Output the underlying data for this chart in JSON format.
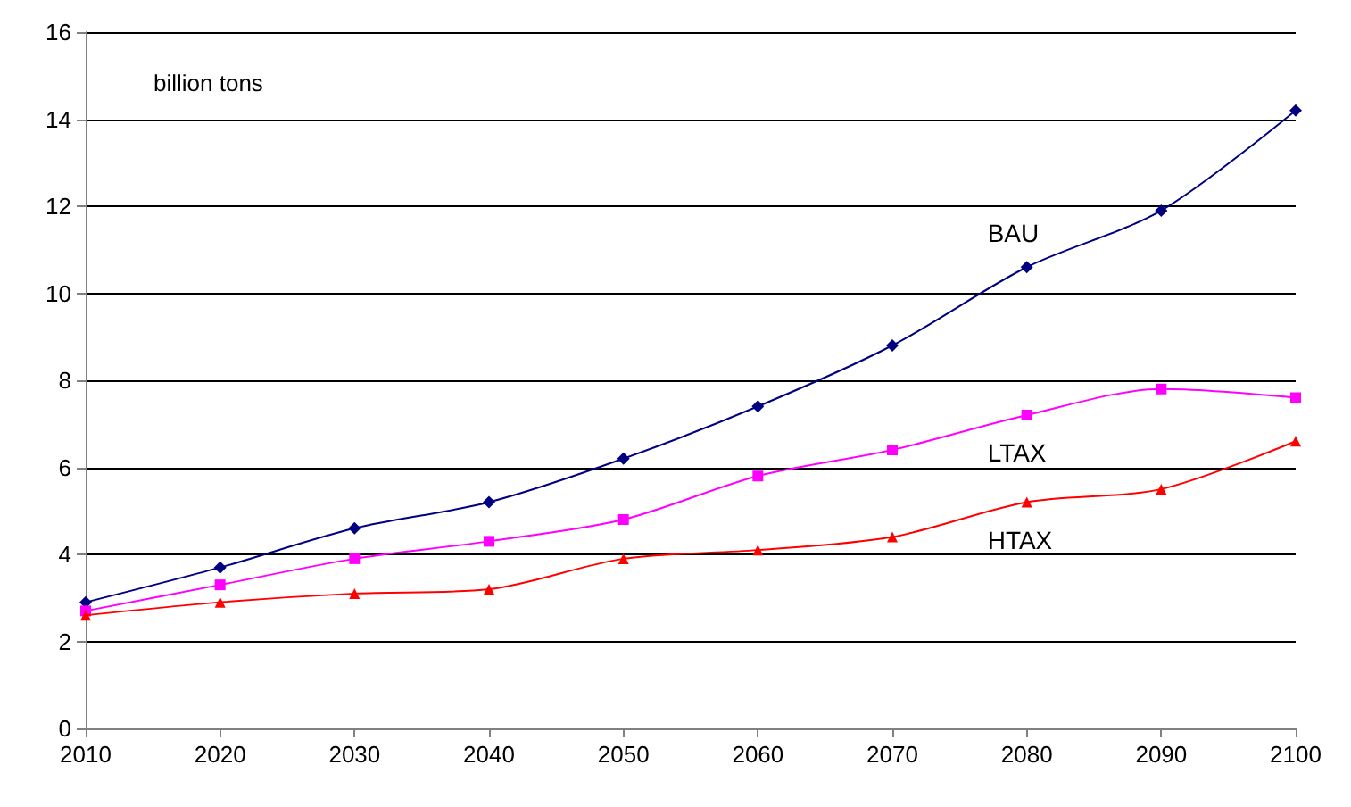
{
  "chart_data": {
    "type": "line",
    "ylabel": "billion tons",
    "x": [
      2010,
      2020,
      2030,
      2040,
      2050,
      2060,
      2070,
      2080,
      2090,
      2100
    ],
    "series": [
      {
        "name": "BAU",
        "color": "#000080",
        "marker": "diamond",
        "values": [
          2.9,
          3.7,
          4.6,
          5.2,
          6.2,
          7.4,
          8.8,
          10.6,
          11.9,
          14.2
        ]
      },
      {
        "name": "LTAX",
        "color": "#ff00ff",
        "marker": "square",
        "values": [
          2.7,
          3.3,
          3.9,
          4.3,
          4.8,
          5.8,
          6.4,
          7.2,
          7.8,
          7.6
        ]
      },
      {
        "name": "HTAX",
        "color": "#ff0000",
        "marker": "triangle",
        "values": [
          2.6,
          2.9,
          3.1,
          3.2,
          3.9,
          4.1,
          4.4,
          5.2,
          5.5,
          6.6
        ]
      }
    ],
    "xlim": [
      2010,
      2100
    ],
    "xticks": [
      2010,
      2020,
      2030,
      2040,
      2050,
      2060,
      2070,
      2080,
      2090,
      2100
    ],
    "ylim": [
      0,
      16
    ],
    "yticks": [
      0,
      2,
      4,
      6,
      8,
      10,
      12,
      14,
      16
    ],
    "grid": "y"
  }
}
